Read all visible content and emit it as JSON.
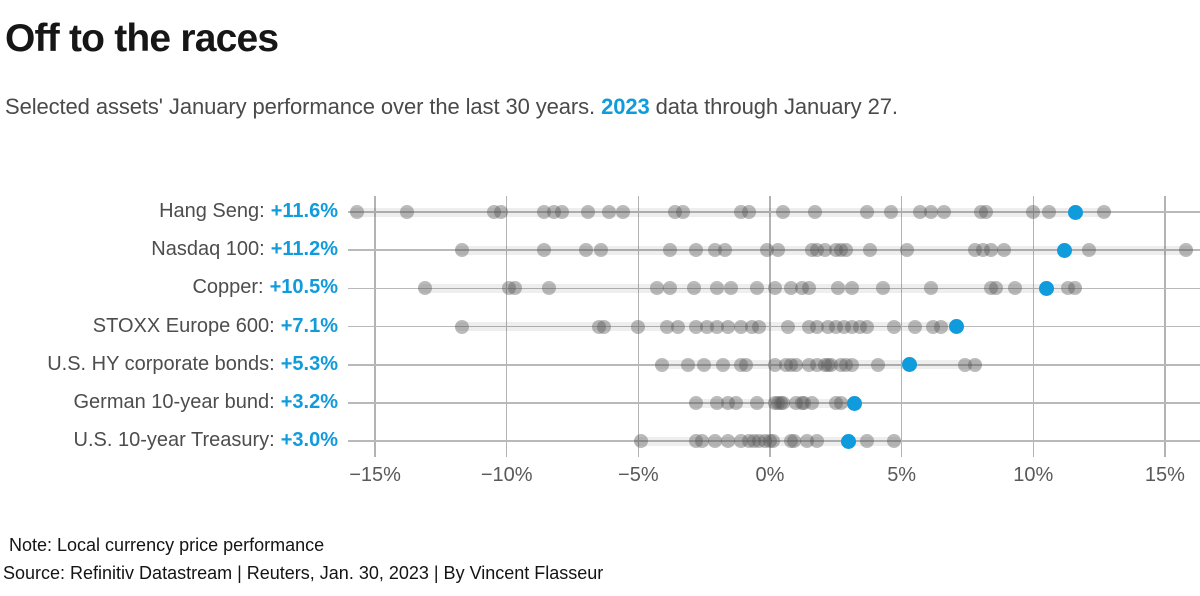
{
  "header": {
    "title": "Off to the races",
    "subtitle": {
      "prefix": "Selected assets' January performance over the last 30 years. ",
      "highlight": "2023",
      "suffix": " data through January 27."
    }
  },
  "colors": {
    "accent_blue": "#109bdc",
    "dot_gray": "rgba(85,85,85,0.40)",
    "grid_line": "#b3b3b3",
    "row_line": "#b9b9b9",
    "range_band": "rgba(0,0,0,0.065)",
    "title_text": "#161616",
    "body_text": "#4a4a4a",
    "axis_text": "#595959"
  },
  "chart_data": {
    "type": "scatter",
    "variant": "strip-plot",
    "title": "Off to the races",
    "subtitle": "Selected assets' January performance over the last 30 years. 2023 data through January 27.",
    "x_ticks": [
      -15,
      -10,
      -5,
      0,
      5,
      10,
      15
    ],
    "x_tick_labels": [
      "−15%",
      "−10%",
      "−5%",
      "0%",
      "5%",
      "10%",
      "15%"
    ],
    "x_range": [
      -16.1,
      16.4
    ],
    "grid": "vertical-gridlines-with-row-lines",
    "legend": "none",
    "highlight_year": "2023",
    "series": [
      {
        "label": "Hang Seng:",
        "value_2023": 11.6,
        "value_2023_text": "+11.6%",
        "history": [
          -15.7,
          -13.8,
          -10.5,
          -10.2,
          -8.6,
          -8.2,
          -7.9,
          -6.9,
          -6.1,
          -5.6,
          -3.6,
          -3.3,
          -1.1,
          -0.8,
          0.5,
          1.7,
          3.7,
          4.6,
          5.7,
          6.1,
          6.6,
          8.0,
          8.2,
          10.0,
          10.6,
          12.7
        ]
      },
      {
        "label": "Nasdaq 100:",
        "value_2023": 11.2,
        "value_2023_text": "+11.2%",
        "history": [
          -11.7,
          -8.6,
          -7.0,
          -6.4,
          -3.8,
          -2.8,
          -2.1,
          -1.7,
          -0.1,
          0.3,
          1.6,
          1.8,
          2.1,
          2.5,
          2.7,
          2.9,
          3.8,
          5.2,
          7.8,
          8.1,
          8.4,
          8.9,
          12.1,
          15.8
        ]
      },
      {
        "label": "Copper:",
        "value_2023": 10.5,
        "value_2023_text": "+10.5%",
        "history": [
          -13.1,
          -9.9,
          -9.7,
          -8.4,
          -4.3,
          -3.8,
          -2.9,
          -2.0,
          -1.5,
          -0.5,
          0.2,
          0.8,
          1.2,
          1.5,
          2.6,
          3.1,
          4.3,
          6.1,
          8.4,
          8.6,
          9.3,
          11.3,
          11.6
        ]
      },
      {
        "label": "STOXX Europe 600:",
        "value_2023": 7.1,
        "value_2023_text": "+7.1%",
        "history": [
          -11.7,
          -6.5,
          -6.3,
          -5.0,
          -3.9,
          -3.5,
          -2.8,
          -2.4,
          -2.0,
          -1.6,
          -1.1,
          -0.7,
          -0.4,
          0.7,
          1.5,
          1.8,
          2.2,
          2.5,
          2.8,
          3.1,
          3.4,
          3.7,
          4.7,
          5.5,
          6.2,
          6.5
        ]
      },
      {
        "label": "U.S. HY corporate bonds:",
        "value_2023": 5.3,
        "value_2023_text": "+5.3%",
        "history": [
          -4.1,
          -3.1,
          -2.5,
          -1.8,
          -1.1,
          -0.9,
          0.2,
          0.6,
          0.8,
          1.0,
          1.5,
          1.8,
          2.1,
          2.2,
          2.3,
          2.7,
          2.9,
          3.1,
          4.1,
          7.4,
          7.8
        ]
      },
      {
        "label": "German 10-year bund:",
        "value_2023": 3.2,
        "value_2023_text": "+3.2%",
        "history": [
          -2.8,
          -2.0,
          -1.6,
          -1.3,
          -0.5,
          0.2,
          0.3,
          0.4,
          0.5,
          1.0,
          1.2,
          1.3,
          1.6,
          2.5,
          2.7
        ]
      },
      {
        "label": "U.S. 10-year Treasury:",
        "value_2023": 3.0,
        "value_2023_text": "+3.0%",
        "history": [
          -4.9,
          -2.8,
          -2.6,
          -2.1,
          -1.6,
          -1.1,
          -0.8,
          -0.6,
          -0.4,
          -0.2,
          0.0,
          0.1,
          0.8,
          0.9,
          1.4,
          1.8,
          3.7,
          4.7
        ]
      }
    ]
  },
  "footer": {
    "note": "Note: Local currency price performance",
    "source": "Source: Refinitiv Datastream | Reuters, Jan. 30, 2023 | By Vincent Flasseur"
  }
}
